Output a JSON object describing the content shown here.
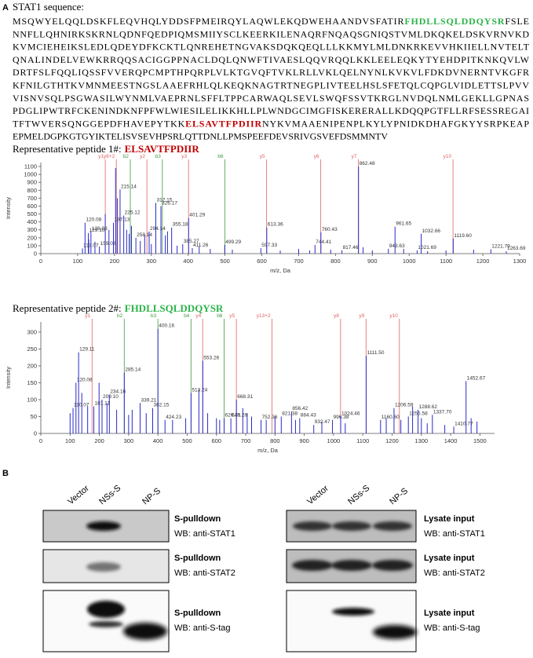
{
  "panel_a": {
    "label": "A",
    "heading": "STAT1 sequence:",
    "sequence_lines": [
      [
        {
          "text": "MSQWYELQQLDSKFLEQVHQLYDDSFPMEIRQYLAQWLEKQDWEHAANDVSFATIR"
        },
        {
          "text": "FHDLLSQLDDQYSR",
          "color": "#2db34a"
        },
        {
          "text": "FSLE"
        }
      ],
      [
        {
          "text": "NNFLLQHNIRKSKRNLQDNFQEDPIQMSMIIYSCLKEERKILENAQRFNQAQSGNIQSTVMLDKQKELDSKVRNVKD"
        }
      ],
      [
        {
          "text": "KVMCIEHEIKSLEDLQDEYDFKCKTLQNREHETNGVAKSDQKQEQLLLKKMYLMLDNKRKEVVHKIIELLNVTELT"
        }
      ],
      [
        {
          "text": "QNALINDELVEWKRRQQSACIGGPPNACLDQLQNWFTIVAESLQQVRQQLKKLEELEQKYTYEHDPITKNKQVLW"
        }
      ],
      [
        {
          "text": "DRTFSLFQQLIQSSFVVERQPCMPTHPQRPLVLKTGVQFTVKLRLLVKLQELNYNLKVKVLFDKDVNERNTVKGFR"
        }
      ],
      [
        {
          "text": "KFNILGTHTKVMNMEESTNGSLAAEFRHLQLKEQKNAGTRTNEGPLIVTEELHSLSFETQLCQPGLVIDLETTSLPVV"
        }
      ],
      [
        {
          "text": "VISNVSQLPSGWASILWYNMLVAEPRNLSFFLTPPCARWAQLSEVLSWQFSSVTKRGLNVDQLNMLGEKLLGPNAS"
        }
      ],
      [
        {
          "text": "PDGLIPWTRFCKENINDKNFPFWLWIESILELIKKHLLPLWNDGCIMGFISKERERALLKDQQPGTFLLRFSESSREGAI"
        }
      ],
      [
        {
          "text": "TFTWVERSQNGGEPDFHAVEPYTKK"
        },
        {
          "text": "ELSAVTFPDIIR",
          "color": "#c00000"
        },
        {
          "text": "NYKVMAAENIPENPLKYLYPNIDKDHAFGKYYSRPKEAP"
        }
      ],
      [
        {
          "text": "EPMELDGPKGTGYIKTELISVSEVHPSRLQTTDNLLPMSPEEFDEVSRIVGSVEFDSMMNTV"
        }
      ]
    ],
    "peptides": [
      {
        "caption": "Representative peptide 1#:",
        "peptide": "ELSAVTFPDIIR",
        "color": "#c00000"
      },
      {
        "caption": "Representative peptide 2#:",
        "peptide": "FHDLLSQLDDQYSR",
        "color": "#2db34a"
      }
    ]
  },
  "chart_data": [
    {
      "type": "spectrum",
      "x_label": "m/z, Da",
      "y_label": "Intensity",
      "color": "#2a2ac8",
      "xlim": [
        0,
        1300
      ],
      "xticks": [
        0,
        100,
        200,
        300,
        400,
        500,
        600,
        700,
        800,
        900,
        1000,
        1100,
        1200,
        1300
      ],
      "ylim": [
        0,
        1150
      ],
      "yticks": [
        0,
        100,
        200,
        300,
        400,
        500,
        600,
        700,
        800,
        900,
        1000,
        1100
      ],
      "annotated_peaks": {
        "x": [
          113.07,
          120.08,
          129.1,
          136.08,
          159.08,
          197.13,
          215.14,
          225.12,
          258.14,
          294.14,
          312.15,
          326.17,
          355.18,
          385.27,
          401.29,
          411.26,
          499.29,
          597.33,
          613.36,
          744.41,
          760.43,
          817.46,
          862.48,
          943.63,
          961.65,
          1021.69,
          1032.66,
          1119.6,
          1221.79,
          1263.69
        ],
        "x_labels": [
          "113.07",
          "120.08",
          "129.10",
          "136.08",
          "159.08",
          "197.13",
          "215.14",
          "225.12",
          "258.14",
          "294.14",
          "312.15",
          "326.17",
          "355.18",
          "385.27",
          "401.29",
          "411.26",
          "499.29",
          "597.33",
          "613.36",
          "744.41",
          "760.43",
          "817.46",
          "862.48",
          "943.63",
          "961.65",
          "1021.69",
          "1032.66",
          "1119.60",
          "1221.79",
          "1263.69"
        ],
        "values": [
          65,
          390,
          260,
          280,
          90,
          390,
          810,
          480,
          200,
          280,
          640,
          600,
          330,
          120,
          450,
          70,
          110,
          70,
          330,
          110,
          270,
          40,
          1100,
          60,
          340,
          40,
          250,
          190,
          55,
          30
        ]
      },
      "other_peaks": {
        "x": [
          130,
          147,
          175,
          185,
          203,
          208,
          233,
          240,
          246,
          270,
          282,
          300,
          338,
          344,
          370,
          430,
          460,
          520,
          650,
          700,
          730,
          787,
          875,
          900,
          985,
          1050,
          1100,
          1175
        ],
        "values": [
          180,
          150,
          500,
          300,
          1080,
          700,
          300,
          250,
          350,
          160,
          240,
          120,
          230,
          280,
          100,
          90,
          60,
          50,
          40,
          60,
          40,
          50,
          80,
          40,
          60,
          30,
          40,
          50
        ]
      },
      "ion_markers": [
        {
          "label": "y1",
          "x": 175,
          "color": "#e06262"
        },
        {
          "label": "y8+2",
          "x": 205,
          "color": "#e06262"
        },
        {
          "label": "b2",
          "x": 243,
          "color": "#3f9a3f"
        },
        {
          "label": "y2",
          "x": 288,
          "color": "#e06262"
        },
        {
          "label": "b3",
          "x": 330,
          "color": "#3f9a3f"
        },
        {
          "label": "y3",
          "x": 401,
          "color": "#e06262"
        },
        {
          "label": "b6",
          "x": 500,
          "color": "#3f9a3f"
        },
        {
          "label": "y5",
          "x": 613,
          "color": "#e06262"
        },
        {
          "label": "y6",
          "x": 760,
          "color": "#e06262"
        },
        {
          "label": "y7",
          "x": 862,
          "color": "#e06262"
        },
        {
          "label": "y10",
          "x": 1119,
          "color": "#e06262"
        }
      ]
    },
    {
      "type": "spectrum",
      "x_label": "m/z, Da",
      "y_label": "Intensity",
      "color": "#2a2ac8",
      "xlim": [
        0,
        1550
      ],
      "xticks": [
        0,
        100,
        200,
        300,
        400,
        500,
        600,
        700,
        800,
        900,
        1000,
        1100,
        1200,
        1300,
        1400,
        1500
      ],
      "ylim": [
        0,
        330
      ],
      "yticks": [
        0,
        50,
        100,
        150,
        200,
        250,
        300
      ],
      "annotated_peaks": {
        "x": [
          110.07,
          120.08,
          129.11,
          181.11,
          209.1,
          234.16,
          285.14,
          339.21,
          382.15,
          400.16,
          424.23,
          513.24,
          553.26,
          626.31,
          649.28,
          668.31,
          752.36,
          821.38,
          856.42,
          884.43,
          932.47,
          996.38,
          1024.46,
          1111.5,
          1160.6,
          1206.59,
          1255.58,
          1288.62,
          1337.7,
          1410.77,
          1452.67
        ],
        "x_labels": [
          "110.07",
          "120.08",
          "129.11",
          "181.11",
          "209.10",
          "234.16",
          "285.14",
          "339.21",
          "382.15",
          "400.16",
          "424.23",
          "513.24",
          "553.26",
          "626.31",
          "649.28",
          "668.31",
          "752.36",
          "821.38",
          "856.42",
          "884.43",
          "932.47",
          "996.38",
          "1024.46",
          "1111.50",
          "1160.60",
          "1206.59",
          "1255.58",
          "1288.62",
          "1337.70",
          "1410.77",
          "1452.67"
        ],
        "values": [
          75,
          150,
          240,
          80,
          100,
          115,
          180,
          90,
          75,
          310,
          40,
          120,
          215,
          45,
          45,
          100,
          40,
          50,
          65,
          45,
          25,
          40,
          50,
          230,
          40,
          75,
          50,
          70,
          55,
          20,
          155
        ]
      },
      "other_peaks": {
        "x": [
          100,
          140,
          160,
          199,
          226,
          259,
          300,
          312,
          360,
          450,
          495,
          540,
          570,
          600,
          611,
          690,
          705,
          720,
          770,
          800,
          870,
          960,
          1040,
          1180,
          1230,
          1270,
          1300,
          1320,
          1380,
          1470,
          1490
        ],
        "values": [
          60,
          120,
          80,
          150,
          90,
          70,
          55,
          70,
          60,
          40,
          45,
          130,
          60,
          45,
          40,
          75,
          60,
          50,
          40,
          50,
          40,
          35,
          30,
          45,
          40,
          80,
          45,
          30,
          25,
          45,
          35
        ]
      },
      "ion_markers": [
        {
          "label": "y1",
          "x": 175,
          "color": "#e06262"
        },
        {
          "label": "b2",
          "x": 285,
          "color": "#3f9a3f"
        },
        {
          "label": "b3",
          "x": 400,
          "color": "#3f9a3f"
        },
        {
          "label": "b4",
          "x": 513,
          "color": "#3f9a3f"
        },
        {
          "label": "y4",
          "x": 553,
          "color": "#e06262"
        },
        {
          "label": "b6",
          "x": 626,
          "color": "#3f9a3f"
        },
        {
          "label": "y5",
          "x": 668,
          "color": "#e06262"
        },
        {
          "label": "y13+2",
          "x": 790,
          "color": "#e06262"
        },
        {
          "label": "y8",
          "x": 1024,
          "color": "#e06262"
        },
        {
          "label": "y9",
          "x": 1111,
          "color": "#e06262"
        },
        {
          "label": "y10",
          "x": 1225,
          "color": "#e06262"
        }
      ]
    }
  ],
  "panel_b": {
    "label": "B",
    "left": {
      "lanes": [
        "Vector",
        "NSs-S",
        "NP-S"
      ],
      "blots": [
        {
          "title": "S-pulldown",
          "antibody": "WB: anti-STAT1"
        },
        {
          "title": "S-pulldown",
          "antibody": "WB: anti-STAT2"
        },
        {
          "title": "S-pulldown",
          "antibody": "WB: anti-S-tag"
        }
      ]
    },
    "right": {
      "lanes": [
        "Vector",
        "NSs-S",
        "NP-S"
      ],
      "blots": [
        {
          "title": "Lysate input",
          "antibody": "WB: anti-STAT1"
        },
        {
          "title": "Lysate input",
          "antibody": "WB: anti-STAT2"
        },
        {
          "title": "Lysate input",
          "antibody": "WB: anti-S-tag"
        }
      ]
    }
  }
}
